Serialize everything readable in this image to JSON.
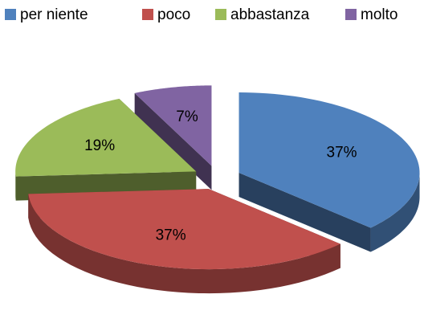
{
  "chart_data": {
    "type": "pie3d",
    "categories": [
      "per niente",
      "poco",
      "abbastanza",
      "molto"
    ],
    "values": [
      37,
      37,
      19,
      7
    ],
    "value_labels": [
      "37%",
      "37%",
      "19%",
      "7%"
    ],
    "colors": [
      "#4f81bd",
      "#c0504d",
      "#9bbb59",
      "#8064a2"
    ],
    "legend": "top"
  }
}
